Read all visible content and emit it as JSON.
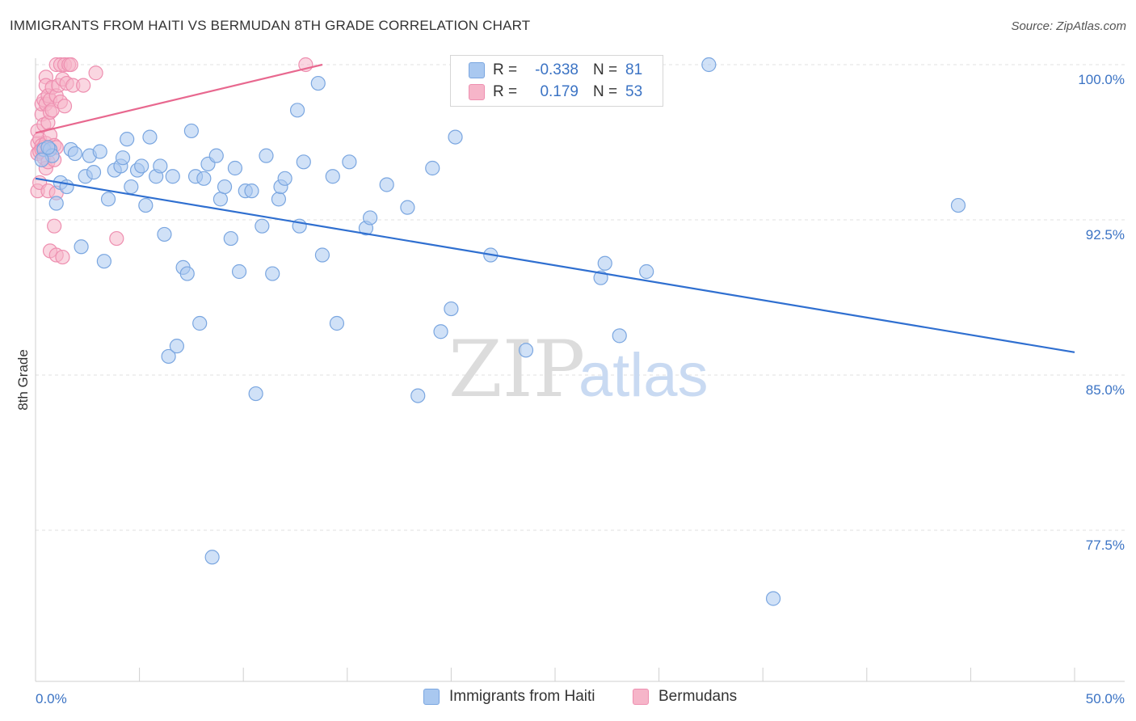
{
  "title": "IMMIGRANTS FROM HAITI VS BERMUDAN 8TH GRADE CORRELATION CHART",
  "source": "Source: ZipAtlas.com",
  "watermark": {
    "zip": "ZIP",
    "atlas": "atlas"
  },
  "colors": {
    "blue_fill": "#a9c8f0",
    "blue_stroke": "#7aa6e0",
    "blue_line": "#2f6fd0",
    "pink_fill": "#f6b5c9",
    "pink_stroke": "#ee8fb0",
    "pink_line": "#e8688f",
    "grid": "#e0e0e0",
    "tick_text": "#3b73c4"
  },
  "legend": {
    "rows": [
      {
        "r_label": "R =",
        "r_value": "-0.338",
        "n_label": "N =",
        "n_value": "81"
      },
      {
        "r_label": "R =",
        "r_value": "0.179",
        "n_label": "N =",
        "n_value": "53"
      }
    ]
  },
  "chart_data": {
    "type": "scatter",
    "xlabel": "",
    "ylabel": "8th Grade",
    "xlim": [
      0,
      50
    ],
    "ylim": [
      70.0,
      100.5
    ],
    "x_tick_labels": [
      "0.0%",
      "50.0%"
    ],
    "y_ticks": [
      100.0,
      92.5,
      85.0,
      77.5
    ],
    "y_tick_labels": [
      "100.0%",
      "92.5%",
      "85.0%",
      "77.5%"
    ],
    "grid": true,
    "legend_position": "bottom",
    "series": [
      {
        "name": "Immigrants from Haiti",
        "color": "#a9c8f0",
        "trend": {
          "x": [
            0.0,
            50.0
          ],
          "y": [
            94.5,
            86.1
          ]
        },
        "points": [
          [
            0.4,
            95.9
          ],
          [
            0.7,
            95.9
          ],
          [
            0.8,
            95.6
          ],
          [
            1.0,
            93.3
          ],
          [
            1.2,
            94.3
          ],
          [
            1.5,
            94.1
          ],
          [
            1.7,
            95.9
          ],
          [
            1.9,
            95.7
          ],
          [
            2.2,
            91.2
          ],
          [
            2.4,
            94.6
          ],
          [
            2.6,
            95.6
          ],
          [
            2.8,
            94.8
          ],
          [
            3.1,
            95.8
          ],
          [
            3.3,
            90.5
          ],
          [
            3.5,
            93.5
          ],
          [
            3.8,
            94.9
          ],
          [
            4.1,
            95.1
          ],
          [
            4.2,
            95.5
          ],
          [
            4.4,
            96.4
          ],
          [
            4.6,
            94.1
          ],
          [
            4.9,
            94.9
          ],
          [
            5.1,
            95.1
          ],
          [
            5.3,
            93.2
          ],
          [
            5.5,
            96.5
          ],
          [
            5.8,
            94.6
          ],
          [
            6.0,
            95.1
          ],
          [
            6.2,
            91.8
          ],
          [
            6.4,
            85.9
          ],
          [
            6.6,
            94.6
          ],
          [
            6.8,
            86.4
          ],
          [
            7.1,
            90.2
          ],
          [
            7.3,
            89.9
          ],
          [
            7.5,
            96.8
          ],
          [
            7.7,
            94.6
          ],
          [
            7.9,
            87.5
          ],
          [
            8.1,
            94.5
          ],
          [
            8.3,
            95.2
          ],
          [
            8.5,
            76.2
          ],
          [
            8.7,
            95.6
          ],
          [
            8.9,
            93.5
          ],
          [
            9.1,
            94.1
          ],
          [
            9.4,
            91.6
          ],
          [
            9.6,
            95.0
          ],
          [
            9.8,
            90.0
          ],
          [
            10.1,
            93.9
          ],
          [
            10.4,
            93.9
          ],
          [
            10.6,
            84.1
          ],
          [
            10.9,
            92.2
          ],
          [
            11.1,
            95.6
          ],
          [
            11.4,
            89.9
          ],
          [
            11.7,
            93.5
          ],
          [
            11.8,
            94.1
          ],
          [
            12.0,
            94.5
          ],
          [
            12.6,
            97.8
          ],
          [
            12.7,
            92.2
          ],
          [
            12.9,
            95.3
          ],
          [
            13.6,
            99.1
          ],
          [
            13.8,
            90.8
          ],
          [
            14.3,
            94.6
          ],
          [
            14.5,
            87.5
          ],
          [
            15.1,
            95.3
          ],
          [
            15.9,
            92.1
          ],
          [
            16.1,
            92.6
          ],
          [
            16.9,
            94.2
          ],
          [
            17.9,
            93.1
          ],
          [
            18.4,
            84.0
          ],
          [
            19.1,
            95.0
          ],
          [
            19.5,
            87.1
          ],
          [
            20.0,
            88.2
          ],
          [
            20.2,
            96.5
          ],
          [
            21.9,
            90.8
          ],
          [
            23.6,
            86.2
          ],
          [
            27.2,
            89.7
          ],
          [
            27.4,
            90.4
          ],
          [
            28.1,
            86.9
          ],
          [
            29.4,
            90.0
          ],
          [
            32.4,
            100.0
          ],
          [
            35.5,
            74.2
          ],
          [
            44.4,
            93.2
          ],
          [
            0.3,
            95.4
          ],
          [
            0.6,
            96.0
          ]
        ]
      },
      {
        "name": "Bermudans",
        "color": "#f6b5c9",
        "trend": {
          "x": [
            0.0,
            13.8
          ],
          "y": [
            96.7,
            100.0
          ]
        },
        "points": [
          [
            0.1,
            96.2
          ],
          [
            0.1,
            95.7
          ],
          [
            0.1,
            93.9
          ],
          [
            0.1,
            96.8
          ],
          [
            0.2,
            95.8
          ],
          [
            0.2,
            96.4
          ],
          [
            0.2,
            94.3
          ],
          [
            0.3,
            97.6
          ],
          [
            0.3,
            98.1
          ],
          [
            0.3,
            96.1
          ],
          [
            0.3,
            95.9
          ],
          [
            0.4,
            98.3
          ],
          [
            0.4,
            97.1
          ],
          [
            0.4,
            96.0
          ],
          [
            0.4,
            95.5
          ],
          [
            0.5,
            99.4
          ],
          [
            0.5,
            99.0
          ],
          [
            0.5,
            98.1
          ],
          [
            0.5,
            96.2
          ],
          [
            0.5,
            95.0
          ],
          [
            0.6,
            98.5
          ],
          [
            0.6,
            97.2
          ],
          [
            0.6,
            95.3
          ],
          [
            0.6,
            93.9
          ],
          [
            0.7,
            98.3
          ],
          [
            0.7,
            97.7
          ],
          [
            0.7,
            96.6
          ],
          [
            0.7,
            91.0
          ],
          [
            0.8,
            98.9
          ],
          [
            0.8,
            97.8
          ],
          [
            0.9,
            96.1
          ],
          [
            0.9,
            92.2
          ],
          [
            0.9,
            95.4
          ],
          [
            1.0,
            100.0
          ],
          [
            1.0,
            98.5
          ],
          [
            1.0,
            96.0
          ],
          [
            1.0,
            90.8
          ],
          [
            1.0,
            93.8
          ],
          [
            1.1,
            99.0
          ],
          [
            1.2,
            100.0
          ],
          [
            1.2,
            98.2
          ],
          [
            1.3,
            99.3
          ],
          [
            1.3,
            90.7
          ],
          [
            1.4,
            100.0
          ],
          [
            1.4,
            98.0
          ],
          [
            1.5,
            99.1
          ],
          [
            1.6,
            100.0
          ],
          [
            1.7,
            100.0
          ],
          [
            1.8,
            99.0
          ],
          [
            2.3,
            99.0
          ],
          [
            2.9,
            99.6
          ],
          [
            3.9,
            91.6
          ],
          [
            13.0,
            100.0
          ]
        ]
      }
    ]
  }
}
